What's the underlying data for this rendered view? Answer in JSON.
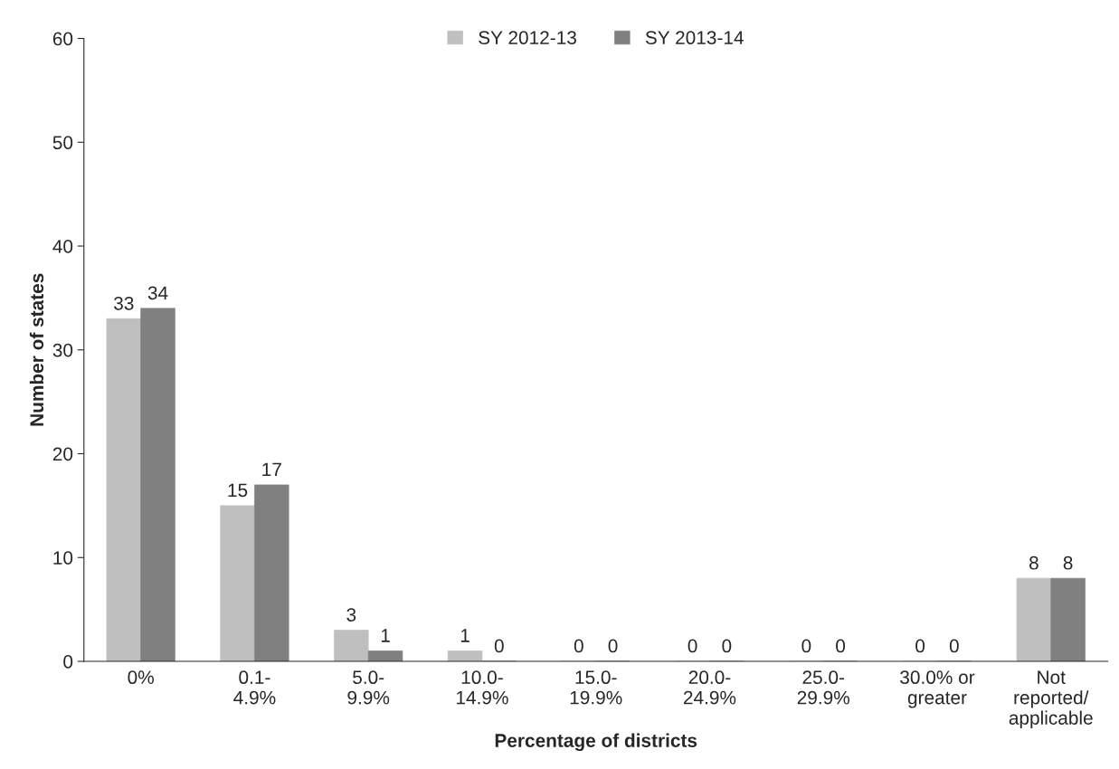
{
  "chart_data": {
    "type": "bar",
    "xlabel": "Percentage of districts",
    "ylabel": "Number of states",
    "categories": [
      "0%",
      "0.1-\n4.9%",
      "5.0-\n9.9%",
      "10.0-\n14.9%",
      "15.0-\n19.9%",
      "20.0-\n24.9%",
      "25.0-\n29.9%",
      "30.0% or\ngreater",
      "Not\nreported/\napplicable"
    ],
    "series": [
      {
        "name": "SY 2012-13",
        "color": "#bfbfbf",
        "values": [
          33,
          15,
          3,
          1,
          0,
          0,
          0,
          0,
          8
        ]
      },
      {
        "name": "SY 2013-14",
        "color": "#808080",
        "values": [
          34,
          17,
          1,
          0,
          0,
          0,
          0,
          0,
          8
        ]
      }
    ],
    "ylim": [
      0,
      60
    ],
    "yticks": [
      0,
      10,
      20,
      30,
      40,
      50,
      60
    ],
    "grid": false,
    "legend": "top",
    "data_labels": true
  }
}
